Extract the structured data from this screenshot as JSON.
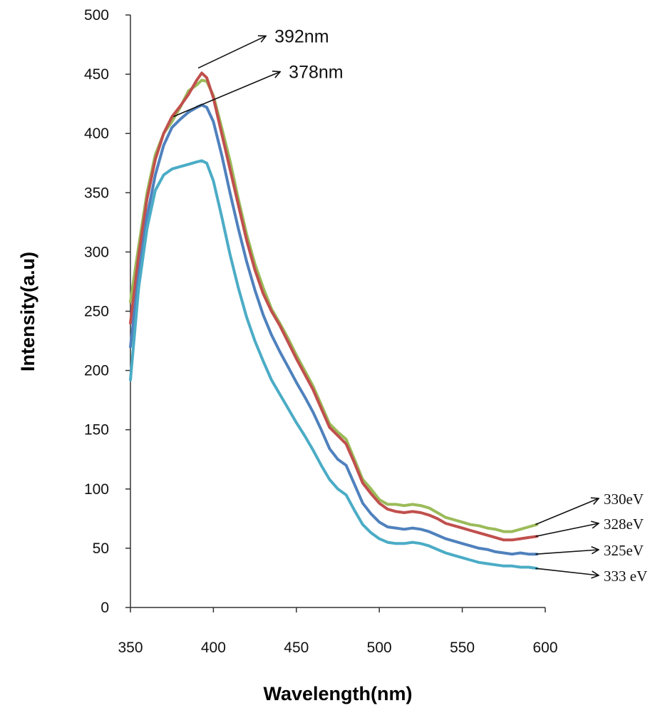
{
  "chart_data": {
    "type": "line",
    "title": "",
    "xlabel": "Wavelength(nm)",
    "ylabel": "Intensity(a.u)",
    "xlim": [
      350,
      600
    ],
    "ylim": [
      0,
      500
    ],
    "xticks": [
      350,
      400,
      450,
      500,
      550,
      600
    ],
    "yticks": [
      0,
      50,
      100,
      150,
      200,
      250,
      300,
      350,
      400,
      450,
      500
    ],
    "grid": false,
    "series": [
      {
        "name": "330eV",
        "color": "#9BBB59",
        "x": [
          350,
          355,
          360,
          365,
          370,
          375,
          380,
          385,
          390,
          393,
          396,
          400,
          405,
          410,
          415,
          420,
          425,
          430,
          435,
          440,
          445,
          450,
          455,
          460,
          465,
          470,
          475,
          480,
          485,
          490,
          495,
          500,
          505,
          510,
          515,
          520,
          525,
          530,
          535,
          540,
          545,
          550,
          555,
          560,
          565,
          570,
          575,
          580,
          585,
          590,
          595
        ],
        "y": [
          258,
          305,
          350,
          382,
          400,
          410,
          422,
          436,
          441,
          445,
          444,
          432,
          405,
          377,
          345,
          315,
          290,
          270,
          252,
          240,
          227,
          213,
          200,
          187,
          171,
          155,
          148,
          142,
          125,
          108,
          100,
          91,
          87,
          87,
          86,
          87,
          86,
          84,
          80,
          76,
          74,
          72,
          70,
          69,
          67,
          66,
          64,
          64,
          66,
          68,
          70
        ]
      },
      {
        "name": "328eV",
        "color": "#C0504D",
        "x": [
          350,
          355,
          360,
          365,
          370,
          375,
          380,
          385,
          390,
          393,
          396,
          400,
          405,
          410,
          415,
          420,
          425,
          430,
          435,
          440,
          445,
          450,
          455,
          460,
          465,
          470,
          475,
          480,
          485,
          490,
          495,
          500,
          505,
          510,
          515,
          520,
          525,
          530,
          535,
          540,
          545,
          550,
          555,
          560,
          565,
          570,
          575,
          580,
          585,
          590,
          595
        ],
        "y": [
          240,
          297,
          345,
          378,
          400,
          414,
          423,
          433,
          445,
          451,
          447,
          430,
          400,
          370,
          340,
          310,
          285,
          265,
          250,
          238,
          224,
          210,
          197,
          184,
          168,
          152,
          145,
          138,
          122,
          105,
          96,
          88,
          83,
          81,
          80,
          81,
          80,
          78,
          75,
          71,
          69,
          67,
          65,
          63,
          61,
          59,
          57,
          57,
          58,
          59,
          60
        ]
      },
      {
        "name": "325eV",
        "color": "#4F81BD",
        "x": [
          350,
          355,
          360,
          365,
          370,
          375,
          380,
          385,
          390,
          393,
          396,
          400,
          405,
          410,
          415,
          420,
          425,
          430,
          435,
          440,
          445,
          450,
          455,
          460,
          465,
          470,
          475,
          480,
          485,
          490,
          495,
          500,
          505,
          510,
          515,
          520,
          525,
          530,
          535,
          540,
          545,
          550,
          555,
          560,
          565,
          570,
          575,
          580,
          585,
          590,
          595
        ],
        "y": [
          220,
          280,
          330,
          365,
          390,
          405,
          412,
          418,
          422,
          424,
          422,
          410,
          382,
          350,
          320,
          292,
          268,
          247,
          230,
          216,
          203,
          190,
          178,
          165,
          150,
          134,
          125,
          120,
          104,
          88,
          79,
          72,
          68,
          67,
          66,
          67,
          66,
          64,
          61,
          58,
          56,
          54,
          52,
          50,
          49,
          47,
          46,
          45,
          46,
          45,
          45
        ]
      },
      {
        "name": "333 eV",
        "color": "#4BACC6",
        "x": [
          350,
          355,
          360,
          365,
          370,
          375,
          380,
          385,
          390,
          393,
          396,
          400,
          405,
          410,
          415,
          420,
          425,
          430,
          435,
          440,
          445,
          450,
          455,
          460,
          465,
          470,
          475,
          480,
          485,
          490,
          495,
          500,
          505,
          510,
          515,
          520,
          525,
          530,
          535,
          540,
          545,
          550,
          555,
          560,
          565,
          570,
          575,
          580,
          585,
          590,
          595
        ],
        "y": [
          192,
          270,
          320,
          352,
          365,
          370,
          372,
          374,
          376,
          377,
          375,
          360,
          330,
          298,
          270,
          245,
          225,
          208,
          192,
          180,
          168,
          156,
          145,
          133,
          120,
          108,
          100,
          95,
          82,
          70,
          63,
          58,
          55,
          54,
          54,
          55,
          54,
          52,
          49,
          46,
          44,
          42,
          40,
          38,
          37,
          36,
          35,
          35,
          34,
          34,
          33
        ]
      }
    ],
    "annotations": [
      {
        "text": "392nm",
        "x": 393,
        "y": 451
      },
      {
        "text": "378nm",
        "x": 378,
        "y": 410
      }
    ]
  }
}
